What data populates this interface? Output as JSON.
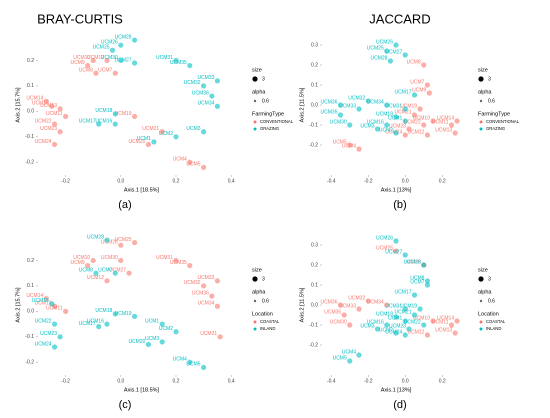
{
  "chart_data": [
    {
      "type": "scatter",
      "title": "BRAY-CURTIS",
      "panel": "(a)",
      "x_label": "Axis.1  [18.5%]",
      "y_label": "Axis.2  [15.7%]",
      "xlim": [
        -0.3,
        0.45
      ],
      "ylim": [
        -0.25,
        0.3
      ],
      "xticks": [
        -0.2,
        {
          "value": 0,
          "label": "0.0"
        },
        0.2,
        0.4
      ],
      "yticks": [
        -0.2,
        -0.1,
        {
          "value": 0,
          "label": "0.0"
        },
        0.1,
        0.2
      ],
      "size_title": "size",
      "size_value": 3,
      "alpha_title": "alpha",
      "alpha_value": 0.6,
      "legend_title": "FarmingType",
      "series": [
        {
          "name": "CONVENTIONAL",
          "color": "#F8766D",
          "labels": [
            "UCM9",
            "UCM10",
            "UCM8",
            "UCM12",
            "UCM7",
            "UCM14",
            "UCM15",
            "UCM13",
            "UCM11",
            "UCM22",
            "UCM23",
            "UCM24",
            "UCM19",
            "UCM20",
            "UCM21",
            "UCM4",
            "UCM5"
          ],
          "x": [
            -0.12,
            -0.1,
            -0.09,
            -0.05,
            -0.02,
            -0.27,
            -0.25,
            -0.22,
            -0.2,
            -0.24,
            -0.22,
            -0.24,
            0.05,
            0.1,
            0.15,
            0.25,
            0.3
          ],
          "y": [
            0.18,
            0.2,
            0.15,
            0.2,
            0.15,
            0.04,
            0.02,
            0.01,
            -0.02,
            -0.05,
            -0.08,
            -0.13,
            -0.02,
            -0.13,
            -0.08,
            -0.2,
            -0.22
          ]
        },
        {
          "name": "GRAZING",
          "color": "#00BFC4",
          "labels": [
            "UCM28",
            "UCM26",
            "UCM25",
            "UCM27",
            "UCM30",
            "UCM31",
            "UCM35",
            "UCM33",
            "UCM32",
            "UCM36",
            "UCM34",
            "UCM18",
            "UCM16",
            "UCM2",
            "UCM3",
            "UCM1",
            "UCM17"
          ],
          "x": [
            0.05,
            0.0,
            -0.03,
            0.05,
            0.0,
            0.2,
            0.25,
            0.35,
            0.3,
            0.33,
            0.35,
            -0.02,
            -0.02,
            0.2,
            0.3,
            0.12,
            -0.08
          ],
          "y": [
            0.28,
            0.26,
            0.24,
            0.19,
            0.2,
            0.2,
            0.18,
            0.12,
            0.1,
            0.06,
            0.02,
            -0.01,
            -0.05,
            -0.1,
            -0.08,
            -0.12,
            -0.05
          ]
        }
      ]
    },
    {
      "type": "scatter",
      "title": "JACCARD",
      "panel": "(b)",
      "x_label": "Axis.1  [13%]",
      "y_label": "Axis.2  [11.5%]",
      "xlim": [
        -0.45,
        0.35
      ],
      "ylim": [
        -0.35,
        0.35
      ],
      "xticks": [
        -0.4,
        -0.2,
        {
          "value": 0,
          "label": "0.0"
        },
        0.2
      ],
      "yticks": [
        -0.2,
        -0.1,
        {
          "value": 0,
          "label": "0.0"
        },
        0.1,
        0.2,
        0.3
      ],
      "size_title": "size",
      "size_value": 3,
      "alpha_title": "alpha",
      "alpha_value": 0.6,
      "legend_title": "FarmingType",
      "series": [
        {
          "name": "CONVENTIONAL",
          "color": "#F8766D",
          "labels": [
            "UCM8",
            "UCM7",
            "UCM9",
            "UCM10",
            "UCM12",
            "UCM11",
            "UCM13",
            "UCM14",
            "UCM19",
            "UCM21",
            "UCM22",
            "UCM23",
            "UCM24",
            "UCM4",
            "UCM5"
          ],
          "x": [
            0.1,
            0.12,
            0.13,
            0.15,
            0.12,
            0.25,
            0.27,
            0.28,
            0.08,
            0.05,
            0.1,
            0.02,
            0.0,
            -0.25,
            -0.3
          ],
          "y": [
            0.2,
            0.1,
            0.06,
            -0.08,
            -0.15,
            -0.1,
            -0.14,
            -0.08,
            -0.02,
            -0.05,
            -0.1,
            -0.12,
            -0.15,
            -0.22,
            -0.2
          ]
        },
        {
          "name": "GRAZING",
          "color": "#00BFC4",
          "labels": [
            "UCM26",
            "UCM25",
            "UCM28",
            "UCM27",
            "UCM36",
            "UCM35",
            "UCM33",
            "UCM32",
            "UCM34",
            "UCM31",
            "UCM30",
            "UCM17",
            "UCM18",
            "UCM16",
            "UCM3",
            "UCM2",
            "UCM1"
          ],
          "x": [
            -0.05,
            -0.1,
            -0.08,
            0.0,
            -0.35,
            -0.35,
            -0.25,
            -0.2,
            -0.1,
            0.0,
            -0.3,
            0.05,
            -0.05,
            -0.1,
            -0.15,
            -0.05,
            0.0
          ],
          "y": [
            0.3,
            0.27,
            0.22,
            0.25,
            0.0,
            -0.05,
            -0.02,
            0.02,
            0.0,
            -0.02,
            -0.1,
            0.05,
            -0.06,
            -0.1,
            -0.12,
            -0.14,
            -0.08
          ]
        }
      ]
    },
    {
      "type": "scatter",
      "panel": "(c)",
      "x_label": "Axis.1  [18.5%]",
      "y_label": "Axis.2  [15.7%]",
      "xlim": [
        -0.3,
        0.45
      ],
      "ylim": [
        -0.25,
        0.3
      ],
      "xticks": [
        -0.2,
        {
          "value": 0,
          "label": "0.0"
        },
        0.2,
        0.4
      ],
      "yticks": [
        -0.2,
        -0.1,
        {
          "value": 0,
          "label": "0.0"
        },
        0.1,
        0.2
      ],
      "size_title": "size",
      "size_value": 3,
      "alpha_title": "alpha",
      "alpha_value": 0.6,
      "legend_title": "Location",
      "series": [
        {
          "name": "COASTAL",
          "color": "#F8766D",
          "labels": [
            "UCM26",
            "UCM25",
            "UCM30",
            "UCM27",
            "UCM9",
            "UCM10",
            "UCM12",
            "UCM14",
            "UCM13",
            "UCM11",
            "UCM31",
            "UCM35",
            "UCM33",
            "UCM32",
            "UCM36",
            "UCM34",
            "UCM21"
          ],
          "x": [
            0.0,
            0.05,
            0.0,
            0.03,
            -0.12,
            -0.1,
            -0.05,
            -0.27,
            -0.24,
            -0.2,
            0.2,
            0.25,
            0.35,
            0.3,
            0.33,
            0.35,
            0.36
          ],
          "y": [
            0.26,
            0.27,
            0.2,
            0.15,
            0.18,
            0.2,
            0.12,
            0.05,
            0.02,
            0.0,
            0.2,
            0.18,
            0.12,
            0.1,
            0.06,
            0.02,
            -0.1
          ]
        },
        {
          "name": "INLAND",
          "color": "#00BFC4",
          "labels": [
            "UCM28",
            "UCM8",
            "UCM7",
            "UCM15",
            "UCM22",
            "UCM23",
            "UCM24",
            "UCM18",
            "UCM16",
            "UCM19",
            "UCM20",
            "UCM1",
            "UCM2",
            "UCM3",
            "UCM4",
            "UCM5",
            "UCM17"
          ],
          "x": [
            -0.05,
            -0.09,
            -0.02,
            -0.25,
            -0.24,
            -0.22,
            -0.24,
            -0.02,
            -0.05,
            0.05,
            0.1,
            0.15,
            0.2,
            0.15,
            0.25,
            0.3,
            -0.08
          ],
          "y": [
            0.28,
            0.15,
            0.15,
            0.03,
            -0.05,
            -0.1,
            -0.14,
            -0.01,
            -0.05,
            -0.02,
            -0.13,
            -0.05,
            -0.08,
            -0.12,
            -0.2,
            -0.22,
            -0.06
          ]
        }
      ]
    },
    {
      "type": "scatter",
      "panel": "(d)",
      "x_label": "Axis.1  [13%]",
      "y_label": "Axis.2  [11.5%]",
      "xlim": [
        -0.45,
        0.35
      ],
      "ylim": [
        -0.35,
        0.35
      ],
      "xticks": [
        -0.4,
        -0.2,
        {
          "value": 0,
          "label": "0.0"
        },
        0.2
      ],
      "yticks": [
        -0.2,
        -0.1,
        {
          "value": 0,
          "label": "0.0"
        },
        0.1,
        0.2,
        0.3
      ],
      "size_title": "size",
      "size_value": 3,
      "alpha_title": "alpha",
      "alpha_value": 0.6,
      "legend_title": "Location",
      "series": [
        {
          "name": "COASTAL",
          "color": "#F8766D",
          "labels": [
            "UCM25",
            "UCM30",
            "UCM9",
            "UCM10",
            "UCM12",
            "UCM11",
            "UCM13",
            "UCM14",
            "UCM36",
            "UCM35",
            "UCM33",
            "UCM32",
            "UCM34"
          ],
          "x": [
            -0.05,
            -0.3,
            0.1,
            0.15,
            0.12,
            0.25,
            0.27,
            0.28,
            -0.35,
            -0.33,
            -0.25,
            -0.2,
            -0.1
          ],
          "y": [
            0.27,
            -0.1,
            0.2,
            -0.08,
            -0.15,
            -0.1,
            -0.14,
            -0.08,
            0.0,
            -0.05,
            -0.02,
            0.02,
            0.0
          ]
        },
        {
          "name": "INLAND",
          "color": "#00BFC4",
          "labels": [
            "UCM26",
            "UCM28",
            "UCM27",
            "UCM8",
            "UCM7",
            "UCM31",
            "UCM17",
            "UCM18",
            "UCM16",
            "UCM19",
            "UCM21",
            "UCM22",
            "UCM23",
            "UCM24",
            "UCM1",
            "UCM2",
            "UCM3",
            "UCM4",
            "UCM5"
          ],
          "x": [
            -0.05,
            0.1,
            0.0,
            0.12,
            0.12,
            0.0,
            0.05,
            -0.05,
            -0.1,
            0.08,
            0.05,
            0.1,
            0.02,
            0.0,
            0.0,
            -0.05,
            -0.15,
            -0.25,
            -0.3
          ],
          "y": [
            0.32,
            0.2,
            0.25,
            0.12,
            0.1,
            -0.02,
            0.05,
            -0.06,
            -0.1,
            -0.02,
            -0.05,
            -0.1,
            -0.12,
            -0.15,
            -0.08,
            -0.14,
            -0.12,
            -0.25,
            -0.28
          ]
        }
      ]
    }
  ]
}
